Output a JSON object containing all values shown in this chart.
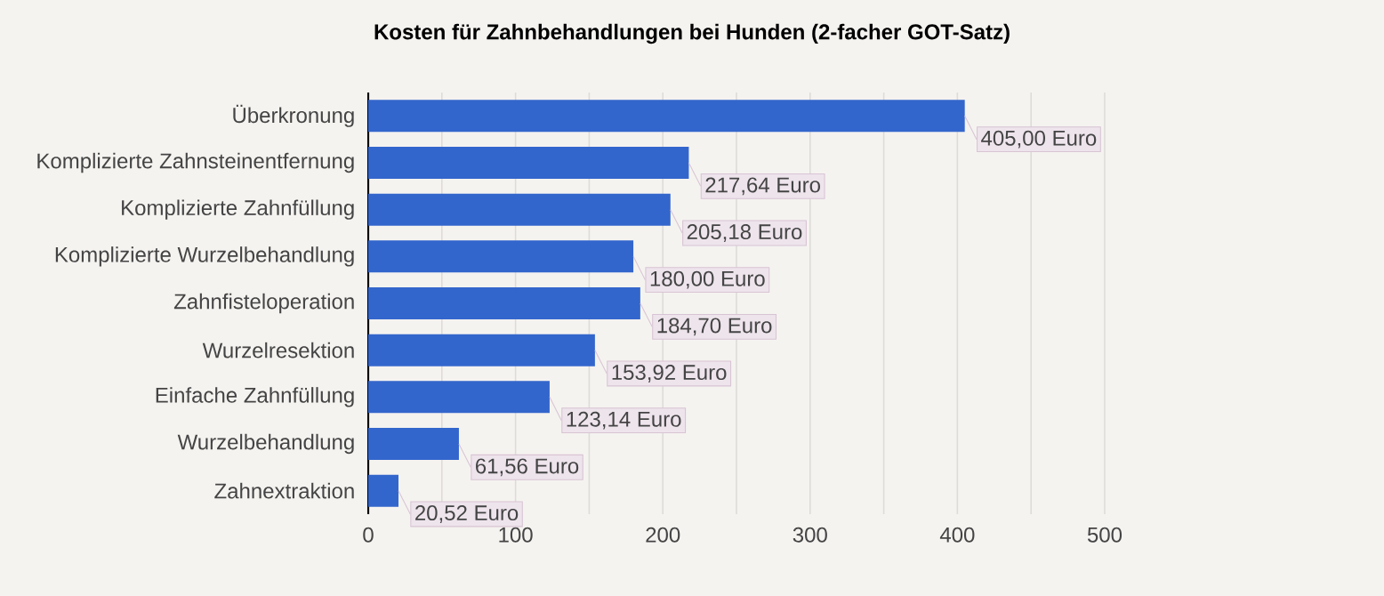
{
  "chart_data": {
    "type": "bar",
    "orientation": "horizontal",
    "title": "Kosten für Zahnbehandlungen bei Hunden (2-facher GOT-Satz)",
    "categories": [
      "Überkronung",
      "Komplizierte Zahnsteinentfernung",
      "Komplizierte Zahnfüllung",
      "Komplizierte Wurzelbehandlung",
      "Zahnfisteloperation",
      "Wurzelresektion",
      "Einfache Zahnfüllung",
      "Wurzelbehandlung",
      "Zahnextraktion"
    ],
    "values": [
      405.0,
      217.64,
      205.18,
      180.0,
      184.7,
      153.92,
      123.14,
      61.56,
      20.52
    ],
    "value_labels": [
      "405,00 Euro",
      "217,64 Euro",
      "205,18 Euro",
      "180,00 Euro",
      "184,70 Euro",
      "153,92 Euro",
      "123,14 Euro",
      "61,56 Euro",
      "20,52 Euro"
    ],
    "color": "#3366cc",
    "xlim": [
      0,
      500
    ],
    "xticks": [
      0,
      {
        "value": 50,
        "label": null
      },
      100,
      {
        "value": 150,
        "label": null
      },
      200,
      {
        "value": 250,
        "label": null
      },
      300,
      {
        "value": 350,
        "label": null
      },
      400,
      {
        "value": 450,
        "label": null
      },
      500
    ],
    "grid": "x"
  }
}
